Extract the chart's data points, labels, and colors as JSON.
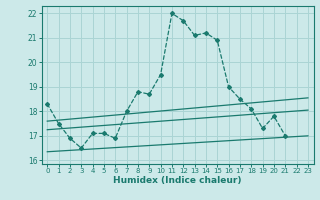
{
  "xlabel": "Humidex (Indice chaleur)",
  "x": [
    0,
    1,
    2,
    3,
    4,
    5,
    6,
    7,
    8,
    9,
    10,
    11,
    12,
    13,
    14,
    15,
    16,
    17,
    18,
    19,
    20,
    21,
    22,
    23
  ],
  "main_y": [
    18.3,
    17.5,
    16.9,
    16.5,
    17.1,
    17.1,
    16.9,
    18.0,
    18.8,
    18.7,
    19.5,
    22.0,
    21.7,
    21.1,
    21.2,
    20.9,
    19.0,
    18.5,
    18.1,
    17.3,
    17.8,
    17.0,
    null,
    null
  ],
  "line1_x": [
    0,
    23
  ],
  "line1_y": [
    17.6,
    18.55
  ],
  "line2_x": [
    0,
    23
  ],
  "line2_y": [
    17.25,
    18.05
  ],
  "line3_x": [
    0,
    23
  ],
  "line3_y": [
    16.35,
    17.0
  ],
  "bg_color": "#cce9e9",
  "grid_color": "#aad4d4",
  "line_color": "#1a7a6e",
  "ylim": [
    15.85,
    22.3
  ],
  "xlim": [
    -0.5,
    23.5
  ],
  "yticks": [
    16,
    17,
    18,
    19,
    20,
    21,
    22
  ],
  "xticks": [
    0,
    1,
    2,
    3,
    4,
    5,
    6,
    7,
    8,
    9,
    10,
    11,
    12,
    13,
    14,
    15,
    16,
    17,
    18,
    19,
    20,
    21,
    22,
    23
  ]
}
